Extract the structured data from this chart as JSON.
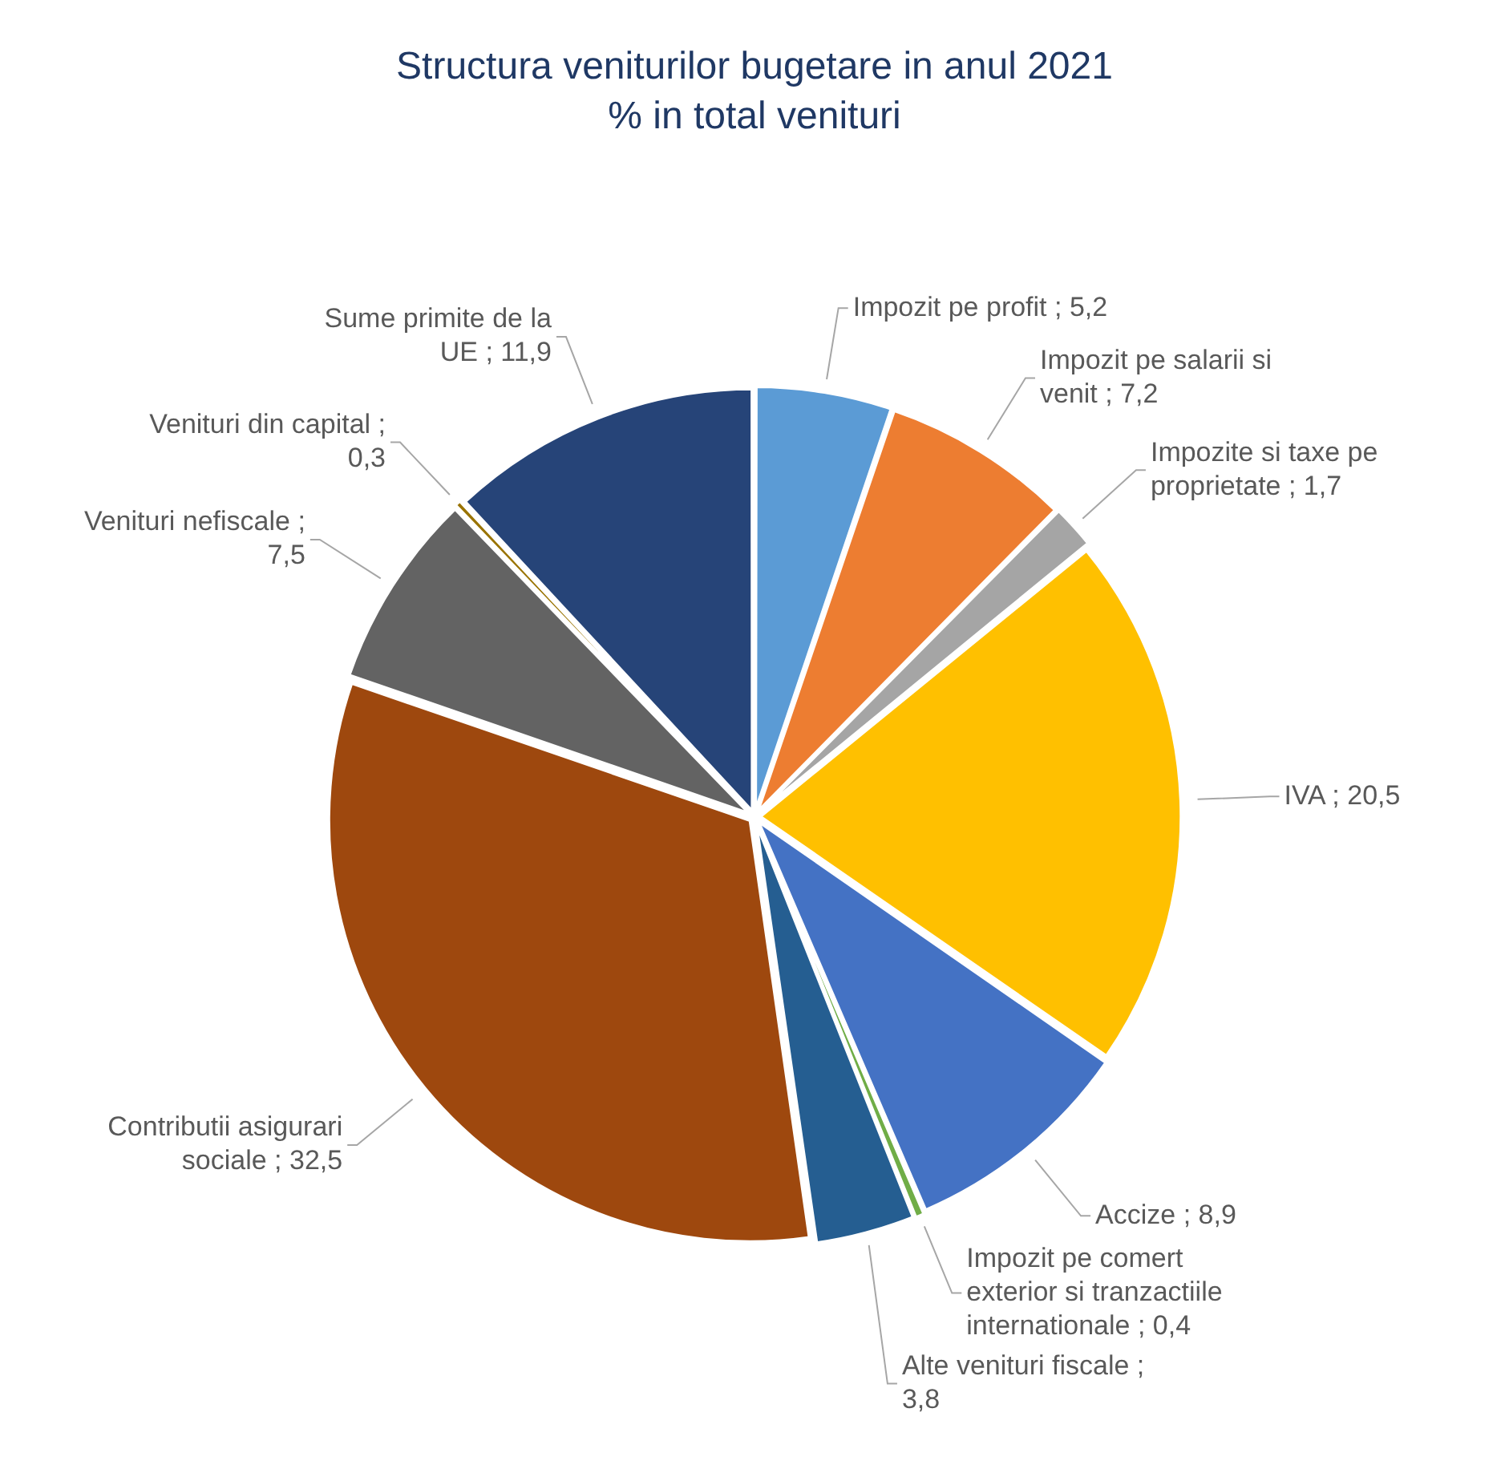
{
  "chart_data": {
    "type": "pie",
    "title": "Structura veniturilor bugetare in anul 2021",
    "subtitle": "% in total venituri",
    "categories": [
      "Impozit pe profit",
      "Impozit pe salarii si venit",
      "Impozite si taxe pe proprietate",
      "IVA",
      "Accize",
      "Impozit pe comert exterior si tranzactiile internationale",
      "Alte venituri fiscale",
      "Contributii asigurari sociale",
      "Venituri nefiscale",
      "Venituri din capital",
      "Sume primite de la UE"
    ],
    "values": [
      5.2,
      7.2,
      1.7,
      20.5,
      8.9,
      0.4,
      3.8,
      32.5,
      7.5,
      0.3,
      11.9
    ],
    "value_labels": [
      "; 5,2",
      "; 7,2",
      "; 1,7",
      "; 20,5",
      "; 8,9",
      "; 0,4",
      "; 3,8",
      "; 32,5",
      "; 7,5",
      "; 0,3",
      "; 11,9"
    ],
    "colors": [
      "#5b9bd5",
      "#ed7d31",
      "#a5a5a5",
      "#ffc000",
      "#4472c4",
      "#70ad47",
      "#255e91",
      "#9e480e",
      "#636363",
      "#997300",
      "#264478"
    ],
    "legend": false
  }
}
